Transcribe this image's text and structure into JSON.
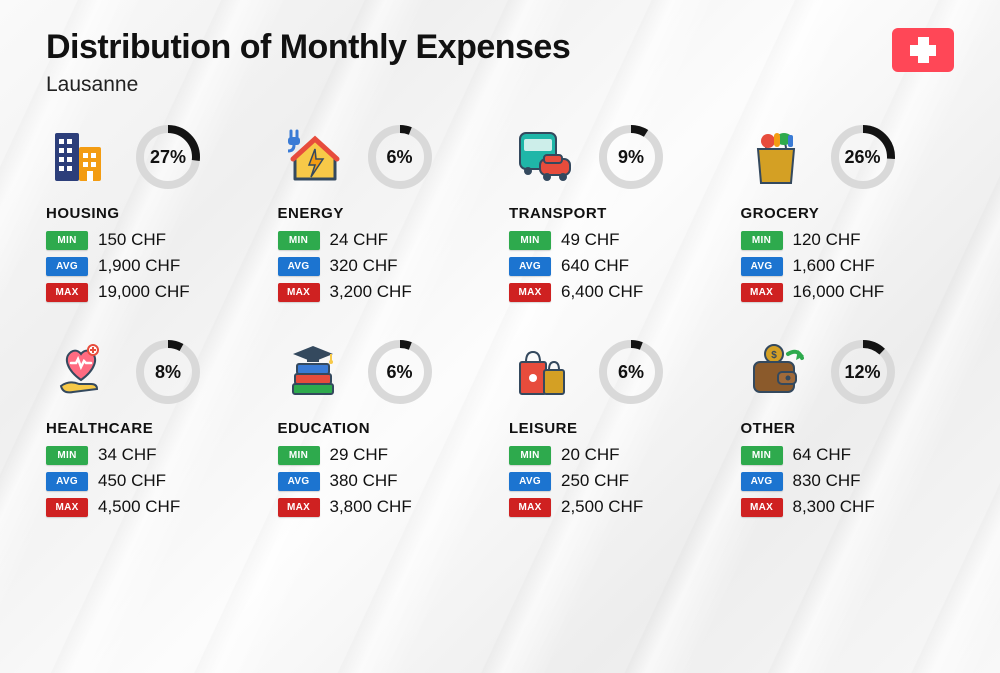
{
  "title": "Distribution of Monthly Expenses",
  "subtitle": "Lausanne",
  "flag": {
    "background": "#ff4757",
    "cross": "#ffffff"
  },
  "ring": {
    "track_color": "#d9d9d9",
    "progress_color": "#131313",
    "stroke_width": 8,
    "radius": 28
  },
  "tags": {
    "min": {
      "label": "MIN",
      "color": "#2eaa4d"
    },
    "avg": {
      "label": "AVG",
      "color": "#1c74d0"
    },
    "max": {
      "label": "MAX",
      "color": "#cf2121"
    }
  },
  "categories": [
    {
      "name": "HOUSING",
      "percent": 27,
      "min": "150 CHF",
      "avg": "1,900 CHF",
      "max": "19,000 CHF",
      "icon": "buildings"
    },
    {
      "name": "ENERGY",
      "percent": 6,
      "min": "24 CHF",
      "avg": "320 CHF",
      "max": "3,200 CHF",
      "icon": "energy-house"
    },
    {
      "name": "TRANSPORT",
      "percent": 9,
      "min": "49 CHF",
      "avg": "640 CHF",
      "max": "6,400 CHF",
      "icon": "bus-car"
    },
    {
      "name": "GROCERY",
      "percent": 26,
      "min": "120 CHF",
      "avg": "1,600 CHF",
      "max": "16,000 CHF",
      "icon": "grocery-bag"
    },
    {
      "name": "HEALTHCARE",
      "percent": 8,
      "min": "34 CHF",
      "avg": "450 CHF",
      "max": "4,500 CHF",
      "icon": "heart-hand"
    },
    {
      "name": "EDUCATION",
      "percent": 6,
      "min": "29 CHF",
      "avg": "380 CHF",
      "max": "3,800 CHF",
      "icon": "grad-books"
    },
    {
      "name": "LEISURE",
      "percent": 6,
      "min": "20 CHF",
      "avg": "250 CHF",
      "max": "2,500 CHF",
      "icon": "shopping-bags"
    },
    {
      "name": "OTHER",
      "percent": 12,
      "min": "64 CHF",
      "avg": "830 CHF",
      "max": "8,300 CHF",
      "icon": "wallet-arrow"
    }
  ],
  "icon_palette": {
    "blue": "#3a7bd5",
    "navy": "#2c3e7a",
    "teal": "#1fb6a8",
    "orange": "#f39c12",
    "red": "#e74c3c",
    "yellow": "#f7c948",
    "green": "#2eaa4d",
    "brown": "#8b5a2b",
    "pink": "#ff6b81",
    "dark": "#34495e",
    "gold": "#d4a024"
  }
}
